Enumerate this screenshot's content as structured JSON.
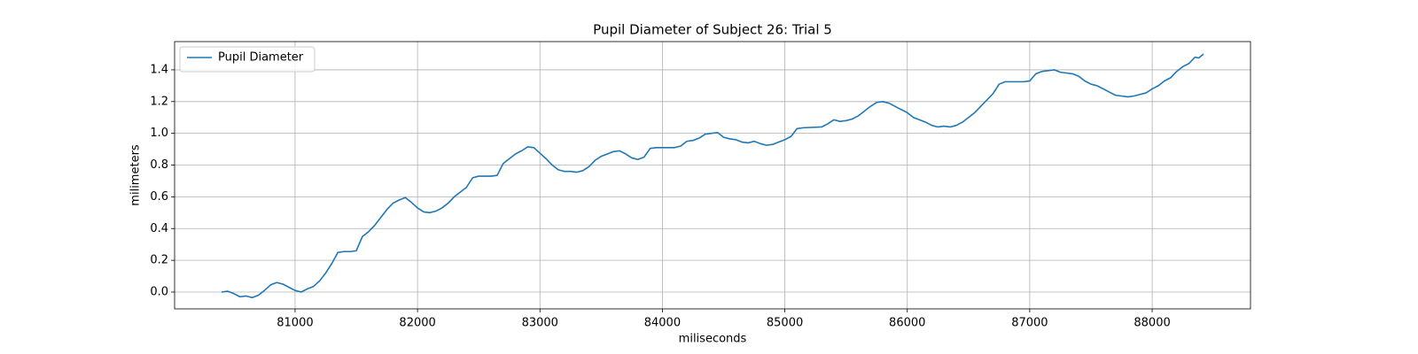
{
  "chart_data": {
    "type": "line",
    "title": "Pupil Diameter of Subject 26: Trial 5",
    "xlabel": "miliseconds",
    "ylabel": "milimeters",
    "legend": "upper left",
    "grid": true,
    "xlim": [
      80016,
      88803
    ],
    "ylim": [
      -0.106,
      1.578
    ],
    "xticks": [
      81000,
      82000,
      83000,
      84000,
      85000,
      86000,
      87000,
      88000
    ],
    "yticks": [
      {
        "value": 0,
        "label": "0.0"
      },
      0.2,
      0.4,
      0.6,
      0.8,
      {
        "value": 1,
        "label": "1.0"
      },
      1.2,
      1.4
    ],
    "x": [
      80400,
      80450,
      80500,
      80550,
      80600,
      80650,
      80700,
      80750,
      80800,
      80850,
      80900,
      80950,
      81000,
      81050,
      81100,
      81150,
      81200,
      81250,
      81300,
      81350,
      81400,
      81450,
      81500,
      81550,
      81600,
      81650,
      81700,
      81750,
      81800,
      81850,
      81900,
      81950,
      82000,
      82050,
      82100,
      82150,
      82200,
      82250,
      82300,
      82350,
      82400,
      82450,
      82500,
      82600,
      82650,
      82700,
      82750,
      82800,
      82850,
      82900,
      82950,
      83000,
      83050,
      83100,
      83150,
      83200,
      83250,
      83300,
      83350,
      83400,
      83450,
      83500,
      83550,
      83600,
      83650,
      83700,
      83750,
      83800,
      83850,
      83900,
      83950,
      84100,
      84150,
      84200,
      84250,
      84300,
      84350,
      84400,
      84450,
      84500,
      84550,
      84600,
      84650,
      84700,
      84750,
      84800,
      84850,
      84900,
      84950,
      85000,
      85050,
      85100,
      85150,
      85300,
      85350,
      85400,
      85450,
      85500,
      85550,
      85600,
      85650,
      85700,
      85750,
      85800,
      85850,
      85900,
      85950,
      86000,
      86050,
      86100,
      86150,
      86200,
      86250,
      86300,
      86350,
      86400,
      86450,
      86500,
      86550,
      86600,
      86650,
      86700,
      86750,
      86800,
      86950,
      87000,
      87050,
      87100,
      87150,
      87200,
      87250,
      87300,
      87350,
      87400,
      87450,
      87500,
      87550,
      87600,
      87650,
      87700,
      87750,
      87800,
      87850,
      87900,
      87950,
      88000,
      88050,
      88100,
      88150,
      88200,
      88250,
      88300,
      88350,
      88380,
      88420
    ],
    "series": [
      {
        "name": "Pupil Diameter",
        "color": "#1f77b4",
        "values": [
          0.0,
          0.005,
          -0.01,
          -0.03,
          -0.025,
          -0.035,
          -0.02,
          0.01,
          0.045,
          0.06,
          0.05,
          0.03,
          0.01,
          0.0,
          0.02,
          0.035,
          0.07,
          0.12,
          0.18,
          0.25,
          0.255,
          0.255,
          0.26,
          0.35,
          0.38,
          0.42,
          0.47,
          0.52,
          0.56,
          0.58,
          0.595,
          0.565,
          0.53,
          0.505,
          0.5,
          0.51,
          0.53,
          0.56,
          0.6,
          0.63,
          0.66,
          0.72,
          0.73,
          0.73,
          0.735,
          0.81,
          0.84,
          0.87,
          0.89,
          0.915,
          0.91,
          0.875,
          0.84,
          0.8,
          0.77,
          0.76,
          0.76,
          0.755,
          0.765,
          0.79,
          0.83,
          0.855,
          0.87,
          0.885,
          0.89,
          0.87,
          0.845,
          0.835,
          0.85,
          0.905,
          0.91,
          0.91,
          0.92,
          0.95,
          0.955,
          0.97,
          0.995,
          1.0,
          1.005,
          0.975,
          0.965,
          0.96,
          0.945,
          0.94,
          0.95,
          0.935,
          0.925,
          0.93,
          0.945,
          0.96,
          0.98,
          1.03,
          1.035,
          1.04,
          1.06,
          1.085,
          1.075,
          1.08,
          1.09,
          1.11,
          1.14,
          1.17,
          1.195,
          1.2,
          1.19,
          1.17,
          1.15,
          1.13,
          1.1,
          1.085,
          1.07,
          1.05,
          1.04,
          1.045,
          1.04,
          1.05,
          1.07,
          1.1,
          1.13,
          1.17,
          1.21,
          1.25,
          1.31,
          1.325,
          1.325,
          1.33,
          1.375,
          1.39,
          1.395,
          1.4,
          1.385,
          1.38,
          1.375,
          1.36,
          1.33,
          1.31,
          1.3,
          1.28,
          1.26,
          1.24,
          1.235,
          1.23,
          1.235,
          1.245,
          1.255,
          1.28,
          1.3,
          1.33,
          1.35,
          1.39,
          1.42,
          1.44,
          1.48,
          1.475,
          1.5
        ]
      }
    ]
  }
}
